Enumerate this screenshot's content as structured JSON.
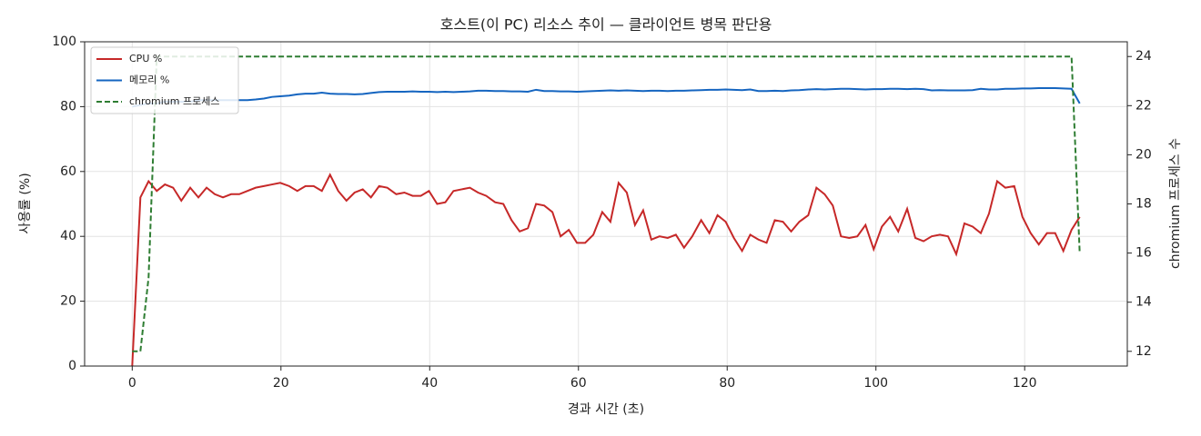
{
  "chart_data": {
    "type": "line",
    "title": "호스트(이 PC) 리소스 추이 — 클라이언트 병목 판단용",
    "xlabel": "경과 시간 (초)",
    "ylabel": "사용률 (%)",
    "y2label": "chromium 프로세스 수",
    "x": [
      0,
      1.1,
      2.2,
      3.3,
      4.4,
      5.5,
      6.6,
      7.8,
      8.9,
      10,
      11.1,
      12.2,
      13.3,
      14.4,
      15.5,
      16.6,
      17.7,
      18.8,
      19.9,
      21.1,
      22.2,
      23.3,
      24.4,
      25.5,
      26.6,
      27.7,
      28.8,
      29.9,
      31,
      32.1,
      33.2,
      34.3,
      35.5,
      36.6,
      37.7,
      38.8,
      39.9,
      41,
      42.1,
      43.2,
      44.3,
      45.4,
      46.5,
      47.6,
      48.8,
      49.9,
      51,
      52.1,
      53.2,
      54.3,
      55.4,
      56.5,
      57.6,
      58.7,
      59.8,
      60.9,
      62,
      63.2,
      64.3,
      65.4,
      66.5,
      67.6,
      68.7,
      69.8,
      70.9,
      72,
      73.1,
      74.2,
      75.3,
      76.5,
      77.6,
      78.7,
      79.8,
      80.9,
      82,
      83.1,
      84.2,
      85.3,
      86.4,
      87.5,
      88.6,
      89.7,
      90.9,
      92,
      93.1,
      94.2,
      95.3,
      96.4,
      97.5,
      98.6,
      99.7,
      100.8,
      101.9,
      103,
      104.2,
      105.3,
      106.4,
      107.5,
      108.6,
      109.7,
      110.8,
      111.9,
      113,
      114.1,
      115.2,
      116.3,
      117.4,
      118.6,
      119.7,
      120.8,
      121.9,
      123,
      124.1,
      125.2,
      126.3,
      127.4
    ],
    "series": [
      {
        "name": "CPU %",
        "color": "#c62828",
        "linestyle": "solid",
        "values": [
          0,
          52,
          57,
          54,
          56,
          55,
          51,
          55,
          52,
          55,
          53,
          52,
          53,
          53,
          54,
          55,
          55.5,
          56,
          56.5,
          55.5,
          54,
          55.5,
          55.5,
          54,
          59,
          54,
          51,
          53.5,
          54.5,
          52,
          55.5,
          55,
          53,
          53.5,
          52.5,
          52.5,
          54,
          50,
          50.5,
          54,
          54.5,
          55,
          53.5,
          52.5,
          50.5,
          50,
          45,
          41.5,
          42.5,
          50,
          49.5,
          47.5,
          40,
          42,
          38,
          38,
          40.5,
          47.5,
          44.5,
          56.5,
          53.5,
          43.5,
          48,
          39,
          40,
          39.5,
          40.5,
          36.5,
          40,
          45,
          41,
          46.5,
          44.5,
          39.5,
          35.5,
          40.5,
          39,
          38,
          45,
          44.5,
          41.5,
          44.5,
          46.5,
          55,
          53,
          49.5,
          40,
          39.5,
          40,
          43.5,
          36,
          43,
          46,
          41.5,
          48.5,
          39.5,
          38.5,
          40,
          40.5,
          40,
          34.5,
          44,
          43,
          41,
          47,
          57,
          55,
          55.5,
          46,
          41,
          37.5,
          41,
          41,
          35.5,
          42,
          46
        ]
      },
      {
        "name": "메모리 %",
        "color": "#1565c0",
        "linestyle": "solid",
        "values": [
          80,
          80.5,
          81,
          81,
          81.5,
          81.5,
          81.5,
          81.5,
          82,
          82,
          82,
          82,
          82,
          82,
          82,
          82.2,
          82.5,
          83,
          83.2,
          83.4,
          83.8,
          84,
          84,
          84.3,
          84,
          83.9,
          83.9,
          83.8,
          83.9,
          84.2,
          84.5,
          84.6,
          84.6,
          84.6,
          84.7,
          84.6,
          84.6,
          84.5,
          84.6,
          84.5,
          84.6,
          84.7,
          84.9,
          84.9,
          84.8,
          84.8,
          84.7,
          84.7,
          84.6,
          85.2,
          84.8,
          84.8,
          84.7,
          84.7,
          84.6,
          84.7,
          84.8,
          84.9,
          85,
          84.9,
          85,
          84.9,
          84.8,
          84.9,
          84.9,
          84.8,
          84.9,
          84.9,
          85,
          85.1,
          85.2,
          85.2,
          85.3,
          85.2,
          85.1,
          85.3,
          84.8,
          84.8,
          84.9,
          84.8,
          85,
          85.1,
          85.3,
          85.4,
          85.3,
          85.4,
          85.5,
          85.5,
          85.4,
          85.3,
          85.4,
          85.4,
          85.5,
          85.5,
          85.4,
          85.5,
          85.4,
          85,
          85.1,
          85,
          85,
          85,
          85.1,
          85.5,
          85.3,
          85.3,
          85.5,
          85.5,
          85.6,
          85.6,
          85.7,
          85.7,
          85.7,
          85.6,
          85.5,
          81
        ]
      },
      {
        "name": "chromium 프로세스",
        "color": "#2e7d32",
        "linestyle": "dashed",
        "axis": "y2",
        "values": [
          12,
          12,
          15,
          24,
          24,
          24,
          24,
          24,
          24,
          24,
          24,
          24,
          24,
          24,
          24,
          24,
          24,
          24,
          24,
          24,
          24,
          24,
          24,
          24,
          24,
          24,
          24,
          24,
          24,
          24,
          24,
          24,
          24,
          24,
          24,
          24,
          24,
          24,
          24,
          24,
          24,
          24,
          24,
          24,
          24,
          24,
          24,
          24,
          24,
          24,
          24,
          24,
          24,
          24,
          24,
          24,
          24,
          24,
          24,
          24,
          24,
          24,
          24,
          24,
          24,
          24,
          24,
          24,
          24,
          24,
          24,
          24,
          24,
          24,
          24,
          24,
          24,
          24,
          24,
          24,
          24,
          24,
          24,
          24,
          24,
          24,
          24,
          24,
          24,
          24,
          24,
          24,
          24,
          24,
          24,
          24,
          24,
          24,
          24,
          24,
          24,
          24,
          24,
          24,
          24,
          24,
          24,
          24,
          24,
          24,
          24,
          24,
          24,
          24,
          24,
          16
        ]
      }
    ],
    "xlim": [
      -6.4,
      133.8
    ],
    "xticks": [
      0,
      20,
      40,
      60,
      80,
      100,
      120
    ],
    "ylim": [
      0,
      100
    ],
    "yticks": [
      0,
      20,
      40,
      60,
      80,
      100
    ],
    "y2lim": [
      11.4,
      24.6
    ],
    "y2ticks": [
      12,
      14,
      16,
      18,
      20,
      22,
      24
    ],
    "grid": true,
    "legend": "upper-left"
  }
}
